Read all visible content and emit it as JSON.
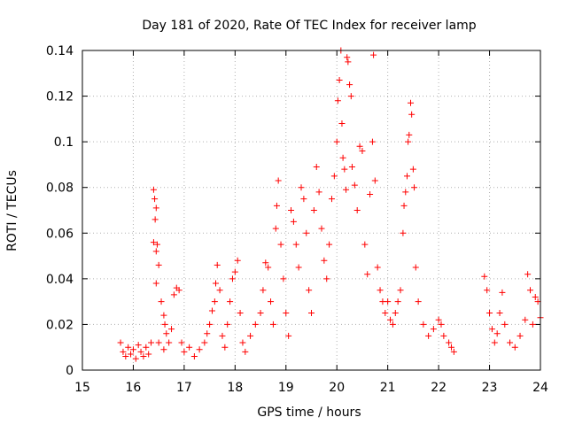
{
  "chart_data": {
    "type": "scatter",
    "title": "Day 181 of 2020, Rate Of TEC Index for receiver lamp",
    "xlabel": "GPS time / hours",
    "ylabel": "ROTI / TECUs",
    "xlim": [
      15,
      24
    ],
    "ylim": [
      0,
      0.14
    ],
    "x_ticks": [
      15,
      16,
      17,
      18,
      19,
      20,
      21,
      22,
      23,
      24
    ],
    "x_tick_labels": [
      "15",
      "16",
      "17",
      "18",
      "19",
      "20",
      "21",
      "22",
      "23",
      "24"
    ],
    "y_ticks": [
      0,
      0.02,
      0.04,
      0.06,
      0.08,
      0.1,
      0.12,
      0.14
    ],
    "y_tick_labels": [
      "0",
      "0.02",
      "0.04",
      "0.06",
      "0.08",
      "0.1",
      "0.12",
      "0.14"
    ],
    "grid": true,
    "marker": "plus",
    "color": "#ff0000",
    "series": [
      {
        "name": "ROTI",
        "points": [
          [
            15.75,
            0.012
          ],
          [
            15.8,
            0.008
          ],
          [
            15.85,
            0.006
          ],
          [
            15.9,
            0.01
          ],
          [
            15.95,
            0.007
          ],
          [
            16.0,
            0.009
          ],
          [
            16.05,
            0.005
          ],
          [
            16.1,
            0.011
          ],
          [
            16.15,
            0.008
          ],
          [
            16.2,
            0.006
          ],
          [
            16.25,
            0.01
          ],
          [
            16.3,
            0.007
          ],
          [
            16.35,
            0.012
          ],
          [
            16.4,
            0.079
          ],
          [
            16.42,
            0.075
          ],
          [
            16.45,
            0.071
          ],
          [
            16.43,
            0.066
          ],
          [
            16.4,
            0.056
          ],
          [
            16.47,
            0.055
          ],
          [
            16.45,
            0.052
          ],
          [
            16.5,
            0.046
          ],
          [
            16.45,
            0.038
          ],
          [
            16.55,
            0.03
          ],
          [
            16.6,
            0.024
          ],
          [
            16.62,
            0.02
          ],
          [
            16.65,
            0.016
          ],
          [
            16.5,
            0.012
          ],
          [
            16.6,
            0.009
          ],
          [
            16.7,
            0.012
          ],
          [
            16.75,
            0.018
          ],
          [
            16.8,
            0.033
          ],
          [
            16.85,
            0.036
          ],
          [
            16.9,
            0.035
          ],
          [
            16.95,
            0.012
          ],
          [
            17.0,
            0.008
          ],
          [
            17.1,
            0.01
          ],
          [
            17.2,
            0.006
          ],
          [
            17.3,
            0.009
          ],
          [
            17.4,
            0.012
          ],
          [
            17.45,
            0.016
          ],
          [
            17.5,
            0.02
          ],
          [
            17.55,
            0.026
          ],
          [
            17.6,
            0.03
          ],
          [
            17.62,
            0.038
          ],
          [
            17.65,
            0.046
          ],
          [
            17.7,
            0.035
          ],
          [
            17.75,
            0.015
          ],
          [
            17.8,
            0.01
          ],
          [
            17.85,
            0.02
          ],
          [
            17.9,
            0.03
          ],
          [
            17.95,
            0.04
          ],
          [
            18.0,
            0.043
          ],
          [
            18.05,
            0.048
          ],
          [
            18.1,
            0.025
          ],
          [
            18.15,
            0.012
          ],
          [
            18.2,
            0.008
          ],
          [
            18.3,
            0.015
          ],
          [
            18.4,
            0.02
          ],
          [
            18.5,
            0.025
          ],
          [
            18.55,
            0.035
          ],
          [
            18.6,
            0.047
          ],
          [
            18.65,
            0.045
          ],
          [
            18.7,
            0.03
          ],
          [
            18.75,
            0.02
          ],
          [
            18.8,
            0.062
          ],
          [
            18.82,
            0.072
          ],
          [
            18.85,
            0.083
          ],
          [
            18.9,
            0.055
          ],
          [
            18.95,
            0.04
          ],
          [
            19.0,
            0.025
          ],
          [
            19.05,
            0.015
          ],
          [
            19.1,
            0.07
          ],
          [
            19.15,
            0.065
          ],
          [
            19.2,
            0.055
          ],
          [
            19.25,
            0.045
          ],
          [
            19.3,
            0.08
          ],
          [
            19.35,
            0.075
          ],
          [
            19.4,
            0.06
          ],
          [
            19.45,
            0.035
          ],
          [
            19.5,
            0.025
          ],
          [
            19.55,
            0.07
          ],
          [
            19.6,
            0.089
          ],
          [
            19.65,
            0.078
          ],
          [
            19.7,
            0.062
          ],
          [
            19.75,
            0.048
          ],
          [
            19.8,
            0.04
          ],
          [
            19.85,
            0.055
          ],
          [
            19.9,
            0.075
          ],
          [
            19.95,
            0.085
          ],
          [
            20.0,
            0.1
          ],
          [
            20.02,
            0.118
          ],
          [
            20.05,
            0.127
          ],
          [
            20.08,
            0.14
          ],
          [
            20.1,
            0.108
          ],
          [
            20.12,
            0.093
          ],
          [
            20.15,
            0.088
          ],
          [
            20.18,
            0.079
          ],
          [
            20.2,
            0.137
          ],
          [
            20.22,
            0.135
          ],
          [
            20.25,
            0.125
          ],
          [
            20.28,
            0.12
          ],
          [
            20.3,
            0.089
          ],
          [
            20.35,
            0.081
          ],
          [
            20.4,
            0.07
          ],
          [
            20.45,
            0.098
          ],
          [
            20.5,
            0.096
          ],
          [
            20.55,
            0.055
          ],
          [
            20.6,
            0.042
          ],
          [
            20.65,
            0.077
          ],
          [
            20.7,
            0.1
          ],
          [
            20.72,
            0.138
          ],
          [
            20.75,
            0.083
          ],
          [
            20.8,
            0.045
          ],
          [
            20.85,
            0.035
          ],
          [
            20.9,
            0.03
          ],
          [
            20.95,
            0.025
          ],
          [
            21.0,
            0.03
          ],
          [
            21.05,
            0.022
          ],
          [
            21.1,
            0.02
          ],
          [
            21.15,
            0.025
          ],
          [
            21.2,
            0.03
          ],
          [
            21.25,
            0.035
          ],
          [
            21.3,
            0.06
          ],
          [
            21.32,
            0.072
          ],
          [
            21.35,
            0.078
          ],
          [
            21.38,
            0.085
          ],
          [
            21.4,
            0.1
          ],
          [
            21.42,
            0.103
          ],
          [
            21.45,
            0.117
          ],
          [
            21.47,
            0.112
          ],
          [
            21.5,
            0.088
          ],
          [
            21.52,
            0.08
          ],
          [
            21.55,
            0.045
          ],
          [
            21.6,
            0.03
          ],
          [
            21.7,
            0.02
          ],
          [
            21.8,
            0.015
          ],
          [
            21.9,
            0.018
          ],
          [
            22.0,
            0.022
          ],
          [
            22.05,
            0.02
          ],
          [
            22.1,
            0.015
          ],
          [
            22.2,
            0.012
          ],
          [
            22.25,
            0.01
          ],
          [
            22.3,
            0.008
          ],
          [
            22.9,
            0.041
          ],
          [
            22.95,
            0.035
          ],
          [
            23.0,
            0.025
          ],
          [
            23.05,
            0.018
          ],
          [
            23.1,
            0.012
          ],
          [
            23.15,
            0.016
          ],
          [
            23.2,
            0.025
          ],
          [
            23.25,
            0.034
          ],
          [
            23.3,
            0.02
          ],
          [
            23.4,
            0.012
          ],
          [
            23.5,
            0.01
          ],
          [
            23.6,
            0.015
          ],
          [
            23.7,
            0.022
          ],
          [
            23.75,
            0.042
          ],
          [
            23.8,
            0.035
          ],
          [
            23.85,
            0.02
          ],
          [
            23.9,
            0.032
          ],
          [
            23.95,
            0.03
          ],
          [
            24.0,
            0.023
          ]
        ]
      }
    ]
  }
}
